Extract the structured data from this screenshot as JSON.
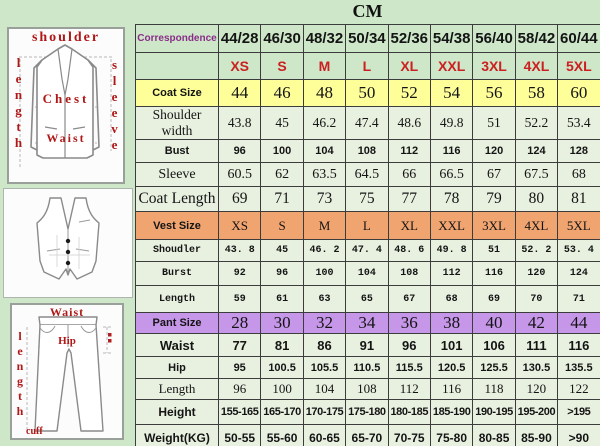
{
  "title": "CM",
  "figures": {
    "jacket": {
      "top_label": "shoulder",
      "left_label": "length",
      "right_label": "sleeve",
      "chest_label": "Chest",
      "waist_label": "Waist"
    },
    "pants": {
      "top_label": "Waist",
      "left_label": "length",
      "hip_label": "Hip",
      "cuff_label": "cuff"
    }
  },
  "chart_data": {
    "type": "table",
    "title": "CM",
    "rows": [
      {
        "label": "Correspondence",
        "kind": "correspondence",
        "values": [
          "44/28",
          "46/30",
          "48/32",
          "50/34",
          "52/36",
          "54/38",
          "56/40",
          "58/42",
          "60/44"
        ]
      },
      {
        "label": "",
        "kind": "sizes",
        "values": [
          "XS",
          "S",
          "M",
          "L",
          "XL",
          "XXL",
          "3XL",
          "4XL",
          "5XL"
        ]
      },
      {
        "label": "Coat Size",
        "kind": "coat-size",
        "values": [
          "44",
          "46",
          "48",
          "50",
          "52",
          "54",
          "56",
          "58",
          "60"
        ]
      },
      {
        "label": "Shoulder width",
        "kind": "shoulder",
        "values": [
          "43.8",
          "45",
          "46.2",
          "47.4",
          "48.6",
          "49.8",
          "51",
          "52.2",
          "53.4"
        ]
      },
      {
        "label": "Bust",
        "kind": "bust",
        "values": [
          "96",
          "100",
          "104",
          "108",
          "112",
          "116",
          "120",
          "124",
          "128"
        ]
      },
      {
        "label": "Sleeve",
        "kind": "sleeve",
        "values": [
          "60.5",
          "62",
          "63.5",
          "64.5",
          "66",
          "66.5",
          "67",
          "67.5",
          "68"
        ]
      },
      {
        "label": "Coat Length",
        "kind": "coatlen",
        "values": [
          "69",
          "71",
          "73",
          "75",
          "77",
          "78",
          "79",
          "80",
          "81"
        ]
      },
      {
        "label": "Vest Size",
        "kind": "vest-size",
        "values": [
          "XS",
          "S",
          "M",
          "L",
          "XL",
          "XXL",
          "3XL",
          "4XL",
          "5XL"
        ]
      },
      {
        "label": "Shoudler",
        "kind": "vest-data",
        "values": [
          "43. 8",
          "45",
          "46. 2",
          "47. 4",
          "48. 6",
          "49. 8",
          "51",
          "52. 2",
          "53. 4"
        ]
      },
      {
        "label": "Burst",
        "kind": "vest-data2",
        "values": [
          "92",
          "96",
          "100",
          "104",
          "108",
          "112",
          "116",
          "120",
          "124"
        ]
      },
      {
        "label": "Length",
        "kind": "vest-data3",
        "values": [
          "59",
          "61",
          "63",
          "65",
          "67",
          "68",
          "69",
          "70",
          "71"
        ]
      },
      {
        "label": "Pant Size",
        "kind": "pant-size",
        "values": [
          "28",
          "30",
          "32",
          "34",
          "36",
          "38",
          "40",
          "42",
          "44"
        ]
      },
      {
        "label": "Waist",
        "kind": "waist",
        "values": [
          "77",
          "81",
          "86",
          "91",
          "96",
          "101",
          "106",
          "111",
          "116"
        ]
      },
      {
        "label": "Hip",
        "kind": "hip",
        "values": [
          "95",
          "100.5",
          "105.5",
          "110.5",
          "115.5",
          "120.5",
          "125.5",
          "130.5",
          "135.5"
        ]
      },
      {
        "label": "Length",
        "kind": "pantlen",
        "values": [
          "96",
          "100",
          "104",
          "108",
          "112",
          "116",
          "118",
          "120",
          "122"
        ]
      },
      {
        "label": "Height",
        "kind": "height",
        "values": [
          "155-165",
          "165-170",
          "170-175",
          "175-180",
          "180-185",
          "185-190",
          "190-195",
          "195-200",
          ">195"
        ]
      },
      {
        "label": "Weight(KG)",
        "kind": "weight",
        "values": [
          "50-55",
          "55-60",
          "60-65",
          "65-70",
          "70-75",
          "75-80",
          "80-85",
          "85-90",
          ">90"
        ]
      }
    ]
  },
  "colors": {
    "page_bg": "#cde7c8",
    "cell_bg": "#e8f1e0",
    "coat_size_row": "#ffff9a",
    "vest_size_row": "#f0a470",
    "pant_size_row": "#c696e8",
    "size_text": "#cc2020",
    "correspondence_text": "#8a2d8a",
    "figure_label": "#b01818",
    "border": "#3c3c3c"
  }
}
